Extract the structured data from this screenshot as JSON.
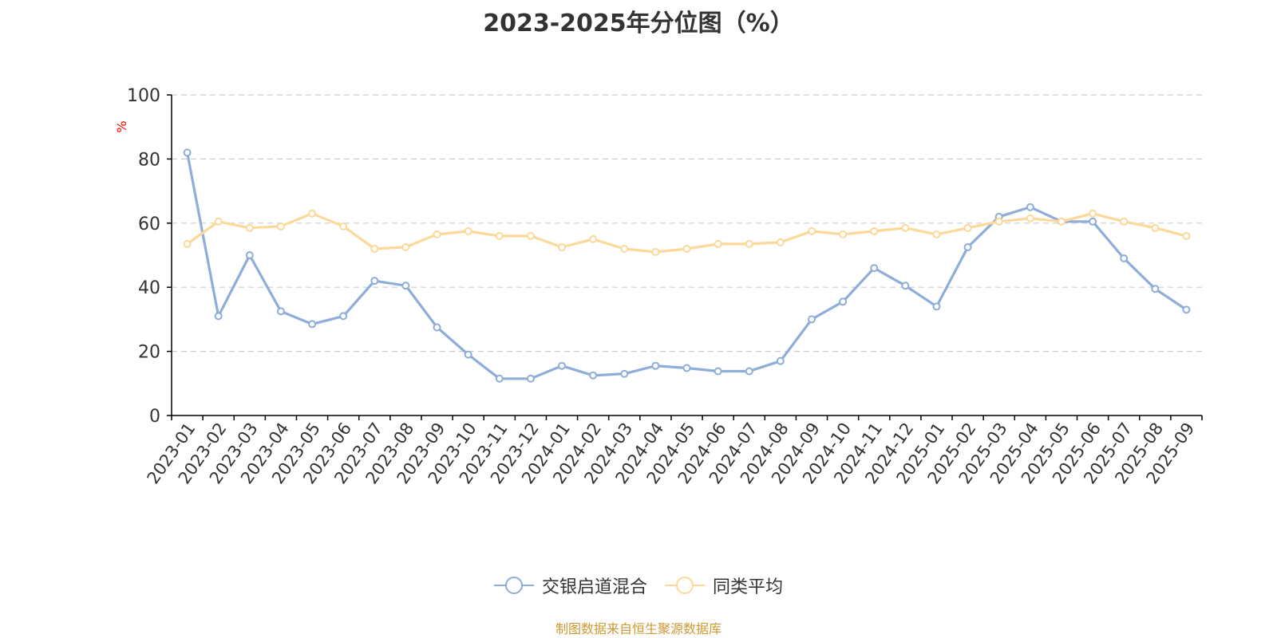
{
  "chart_data": {
    "type": "line",
    "title": "2023-2025年分位图（%）",
    "ylabel": "%",
    "xlabel": "",
    "ylim": [
      0,
      100
    ],
    "yticks": [
      0,
      20,
      40,
      60,
      80,
      100
    ],
    "grid": true,
    "legend_position": "bottom",
    "categories": [
      "2023-01",
      "2023-02",
      "2023-03",
      "2023-04",
      "2023-05",
      "2023-06",
      "2023-07",
      "2023-08",
      "2023-09",
      "2023-10",
      "2023-11",
      "2023-12",
      "2024-01",
      "2024-02",
      "2024-03",
      "2024-04",
      "2024-05",
      "2024-06",
      "2024-07",
      "2024-08",
      "2024-09",
      "2024-10",
      "2024-11",
      "2024-12",
      "2025-01",
      "2025-02",
      "2025-03",
      "2025-04",
      "2025-05",
      "2025-06",
      "2025-07",
      "2025-08",
      "2025-09"
    ],
    "series": [
      {
        "name": "交银启道混合",
        "color": "#8EADD8",
        "values": [
          82,
          31,
          50,
          32.5,
          28.5,
          31,
          42,
          40.5,
          27.5,
          19,
          11.5,
          11.5,
          15.5,
          12.5,
          13,
          15.5,
          14.8,
          13.8,
          13.8,
          17,
          30,
          35.5,
          46,
          40.5,
          34,
          52.5,
          62,
          65,
          60.5,
          60.5,
          49,
          39.5,
          33
        ]
      },
      {
        "name": "同类平均",
        "color": "#FCD999",
        "values": [
          53.5,
          60.5,
          58.5,
          59,
          63,
          59,
          52,
          52.5,
          56.5,
          57.5,
          56,
          56,
          52.5,
          55,
          52,
          51,
          52,
          53.5,
          53.5,
          54,
          57.5,
          56.5,
          57.5,
          58.5,
          56.5,
          58.5,
          60.5,
          61.5,
          60.5,
          63,
          60.5,
          58.5,
          56
        ]
      }
    ]
  },
  "source_note": "制图数据来自恒生聚源数据库",
  "colors": {
    "axis": "#000000",
    "grid": "#CCCCCC",
    "tick_text": "#333333",
    "ylabel": "#FF0000",
    "source": "#CC9933"
  }
}
